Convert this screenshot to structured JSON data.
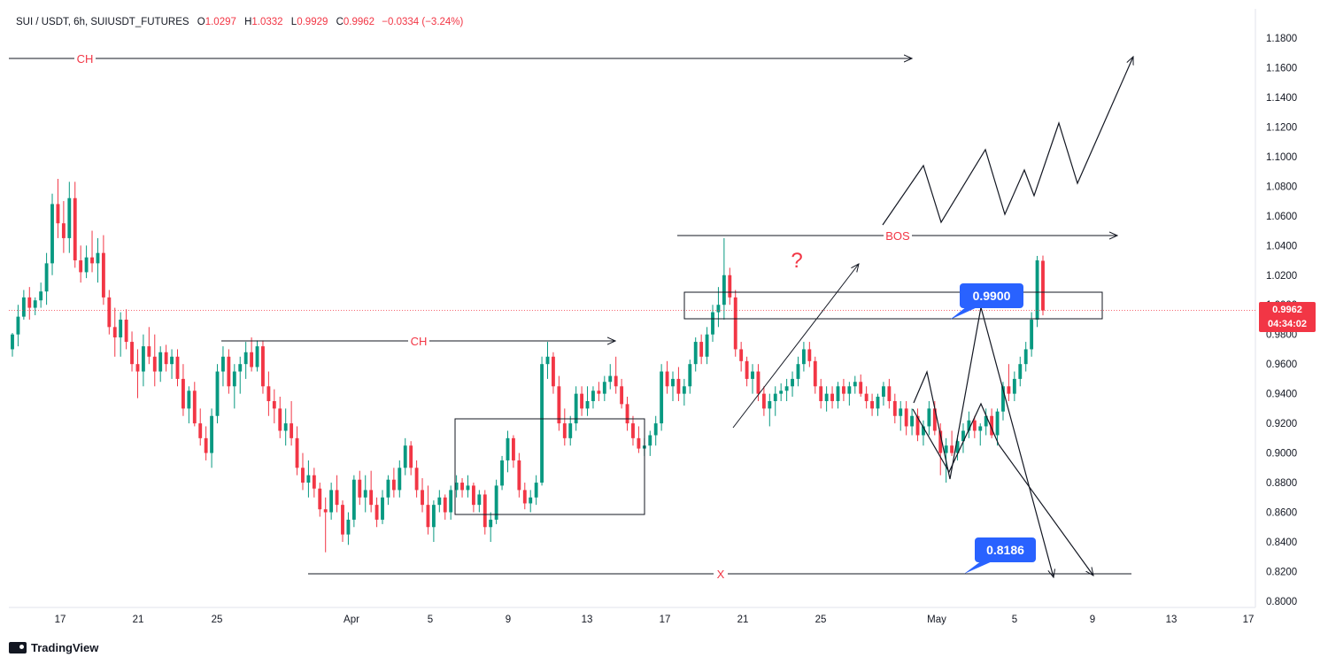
{
  "header": {
    "symbol": "SUI / USDT, 6h, SUIUSDT_FUTURES",
    "open_label": "O",
    "open": "1.0297",
    "high_label": "H",
    "high": "1.0332",
    "low_label": "L",
    "low": "0.9929",
    "close_label": "C",
    "close": "0.9962",
    "change": "−0.0334 (−3.24%)"
  },
  "price_tag": {
    "price": "0.9962",
    "countdown": "04:34:02"
  },
  "brand": {
    "name": "TradingView"
  },
  "colors": {
    "up": "#089981",
    "down": "#f23645",
    "label_blue": "#2962ff",
    "annotation_red": "#f23645"
  },
  "chart_data": {
    "type": "candlestick",
    "y_axis": {
      "range": [
        0.79,
        1.19
      ],
      "ticks": [
        "1.1800",
        "1.1600",
        "1.1400",
        "1.1200",
        "1.1000",
        "1.0800",
        "1.0600",
        "1.0400",
        "1.0200",
        "1.0000",
        "0.9800",
        "0.9600",
        "0.9400",
        "0.9200",
        "0.9000",
        "0.8800",
        "0.8600",
        "0.8400",
        "0.8200",
        "0.8000"
      ]
    },
    "x_axis": {
      "ticks": [
        "17",
        "21",
        "25",
        "Apr",
        "5",
        "9",
        "13",
        "17",
        "21",
        "25",
        "May",
        "5",
        "9",
        "13",
        "17"
      ]
    },
    "grid": false,
    "annotations": {
      "ch_top": "CH",
      "ch_mid": "CH",
      "bos": "BOS",
      "x_line": "X",
      "question": "?",
      "level_upper": "0.9900",
      "level_lower": "0.8186"
    },
    "candles_approx": [
      [
        0.97,
        0.981,
        0.965,
        0.98
      ],
      [
        0.98,
        1.0,
        0.972,
        0.992
      ],
      [
        0.992,
        1.01,
        0.99,
        1.005
      ],
      [
        1.005,
        1.012,
        0.99,
        0.998
      ],
      [
        0.998,
        1.005,
        0.993,
        1.003
      ],
      [
        1.003,
        1.015,
        0.998,
        1.009
      ],
      [
        1.009,
        1.035,
        1.0,
        1.028
      ],
      [
        1.028,
        1.075,
        1.02,
        1.068
      ],
      [
        1.068,
        1.085,
        1.045,
        1.055
      ],
      [
        1.055,
        1.07,
        1.035,
        1.045
      ],
      [
        1.045,
        1.083,
        1.035,
        1.072
      ],
      [
        1.072,
        1.083,
        1.025,
        1.03
      ],
      [
        1.03,
        1.04,
        1.015,
        1.022
      ],
      [
        1.022,
        1.04,
        1.018,
        1.032
      ],
      [
        1.032,
        1.05,
        1.022,
        1.028
      ],
      [
        1.028,
        1.045,
        1.015,
        1.035
      ],
      [
        1.035,
        1.047,
        1.0,
        1.005
      ],
      [
        1.005,
        1.01,
        0.98,
        0.985
      ],
      [
        0.985,
        0.998,
        0.965,
        0.978
      ],
      [
        0.978,
        0.995,
        0.965,
        0.99
      ],
      [
        0.99,
        0.997,
        0.97,
        0.975
      ],
      [
        0.975,
        0.982,
        0.955,
        0.96
      ],
      [
        0.96,
        0.97,
        0.937,
        0.955
      ],
      [
        0.955,
        0.98,
        0.945,
        0.972
      ],
      [
        0.972,
        0.985,
        0.96,
        0.965
      ],
      [
        0.965,
        0.98,
        0.945,
        0.955
      ],
      [
        0.955,
        0.972,
        0.948,
        0.968
      ],
      [
        0.968,
        0.973,
        0.955,
        0.96
      ],
      [
        0.96,
        0.97,
        0.95,
        0.965
      ],
      [
        0.965,
        0.97,
        0.945,
        0.95
      ],
      [
        0.95,
        0.96,
        0.925,
        0.93
      ],
      [
        0.93,
        0.945,
        0.92,
        0.942
      ],
      [
        0.942,
        0.948,
        0.918,
        0.92
      ],
      [
        0.92,
        0.93,
        0.905,
        0.91
      ],
      [
        0.91,
        0.918,
        0.895,
        0.9
      ],
      [
        0.9,
        0.93,
        0.89,
        0.925
      ],
      [
        0.925,
        0.96,
        0.92,
        0.955
      ],
      [
        0.955,
        0.972,
        0.945,
        0.965
      ],
      [
        0.965,
        0.97,
        0.94,
        0.945
      ],
      [
        0.945,
        0.96,
        0.93,
        0.955
      ],
      [
        0.955,
        0.965,
        0.94,
        0.96
      ],
      [
        0.96,
        0.975,
        0.95,
        0.968
      ],
      [
        0.968,
        0.978,
        0.955,
        0.958
      ],
      [
        0.958,
        0.976,
        0.955,
        0.972
      ],
      [
        0.972,
        0.976,
        0.94,
        0.945
      ],
      [
        0.945,
        0.955,
        0.925,
        0.935
      ],
      [
        0.935,
        0.943,
        0.92,
        0.93
      ],
      [
        0.93,
        0.938,
        0.91,
        0.915
      ],
      [
        0.915,
        0.93,
        0.905,
        0.92
      ],
      [
        0.92,
        0.935,
        0.905,
        0.91
      ],
      [
        0.91,
        0.918,
        0.885,
        0.89
      ],
      [
        0.89,
        0.9,
        0.875,
        0.88
      ],
      [
        0.88,
        0.895,
        0.87,
        0.885
      ],
      [
        0.885,
        0.89,
        0.87,
        0.876
      ],
      [
        0.876,
        0.88,
        0.857,
        0.862
      ],
      [
        0.862,
        0.87,
        0.833,
        0.86
      ],
      [
        0.86,
        0.88,
        0.855,
        0.875
      ],
      [
        0.875,
        0.885,
        0.86,
        0.865
      ],
      [
        0.865,
        0.868,
        0.84,
        0.845
      ],
      [
        0.845,
        0.86,
        0.838,
        0.855
      ],
      [
        0.855,
        0.885,
        0.85,
        0.882
      ],
      [
        0.882,
        0.888,
        0.865,
        0.87
      ],
      [
        0.87,
        0.885,
        0.86,
        0.875
      ],
      [
        0.875,
        0.888,
        0.86,
        0.865
      ],
      [
        0.865,
        0.87,
        0.85,
        0.855
      ],
      [
        0.855,
        0.875,
        0.852,
        0.87
      ],
      [
        0.87,
        0.885,
        0.865,
        0.882
      ],
      [
        0.882,
        0.89,
        0.87,
        0.875
      ],
      [
        0.875,
        0.895,
        0.87,
        0.89
      ],
      [
        0.89,
        0.91,
        0.885,
        0.905
      ],
      [
        0.905,
        0.908,
        0.885,
        0.89
      ],
      [
        0.89,
        0.895,
        0.87,
        0.875
      ],
      [
        0.875,
        0.883,
        0.86,
        0.865
      ],
      [
        0.865,
        0.878,
        0.845,
        0.85
      ],
      [
        0.85,
        0.868,
        0.84,
        0.865
      ],
      [
        0.865,
        0.875,
        0.86,
        0.87
      ],
      [
        0.87,
        0.872,
        0.855,
        0.86
      ],
      [
        0.86,
        0.878,
        0.855,
        0.875
      ],
      [
        0.875,
        0.885,
        0.87,
        0.88
      ],
      [
        0.88,
        0.883,
        0.87,
        0.875
      ],
      [
        0.875,
        0.885,
        0.87,
        0.878
      ],
      [
        0.878,
        0.88,
        0.86,
        0.865
      ],
      [
        0.865,
        0.875,
        0.86,
        0.872
      ],
      [
        0.872,
        0.875,
        0.845,
        0.85
      ],
      [
        0.85,
        0.86,
        0.84,
        0.855
      ],
      [
        0.855,
        0.882,
        0.852,
        0.878
      ],
      [
        0.878,
        0.898,
        0.875,
        0.895
      ],
      [
        0.895,
        0.915,
        0.887,
        0.91
      ],
      [
        0.91,
        0.912,
        0.89,
        0.895
      ],
      [
        0.895,
        0.9,
        0.87,
        0.875
      ],
      [
        0.875,
        0.88,
        0.862,
        0.866
      ],
      [
        0.866,
        0.875,
        0.86,
        0.87
      ],
      [
        0.87,
        0.885,
        0.865,
        0.88
      ],
      [
        0.88,
        0.965,
        0.878,
        0.96
      ],
      [
        0.96,
        0.975,
        0.95,
        0.965
      ],
      [
        0.965,
        0.968,
        0.94,
        0.945
      ],
      [
        0.945,
        0.952,
        0.915,
        0.92
      ],
      [
        0.92,
        0.93,
        0.905,
        0.91
      ],
      [
        0.91,
        0.925,
        0.905,
        0.92
      ],
      [
        0.92,
        0.945,
        0.915,
        0.94
      ],
      [
        0.94,
        0.945,
        0.925,
        0.93
      ],
      [
        0.93,
        0.945,
        0.925,
        0.935
      ],
      [
        0.935,
        0.945,
        0.93,
        0.942
      ],
      [
        0.942,
        0.948,
        0.935,
        0.94
      ],
      [
        0.94,
        0.952,
        0.935,
        0.948
      ],
      [
        0.948,
        0.96,
        0.943,
        0.952
      ],
      [
        0.952,
        0.965,
        0.94,
        0.945
      ],
      [
        0.945,
        0.95,
        0.93,
        0.933
      ],
      [
        0.933,
        0.938,
        0.915,
        0.92
      ],
      [
        0.92,
        0.925,
        0.905,
        0.91
      ],
      [
        0.91,
        0.918,
        0.9,
        0.903
      ],
      [
        0.903,
        0.91,
        0.898,
        0.905
      ],
      [
        0.905,
        0.915,
        0.898,
        0.912
      ],
      [
        0.912,
        0.925,
        0.905,
        0.92
      ],
      [
        0.92,
        0.96,
        0.915,
        0.955
      ],
      [
        0.955,
        0.962,
        0.94,
        0.945
      ],
      [
        0.945,
        0.955,
        0.935,
        0.95
      ],
      [
        0.95,
        0.958,
        0.935,
        0.94
      ],
      [
        0.94,
        0.95,
        0.932,
        0.945
      ],
      [
        0.945,
        0.963,
        0.94,
        0.96
      ],
      [
        0.96,
        0.978,
        0.955,
        0.975
      ],
      [
        0.975,
        0.98,
        0.96,
        0.965
      ],
      [
        0.965,
        0.985,
        0.96,
        0.98
      ],
      [
        0.98,
        1.0,
        0.975,
        0.995
      ],
      [
        0.995,
        1.012,
        0.985,
        1.0
      ],
      [
        1.0,
        1.045,
        0.99,
        1.02
      ],
      [
        1.02,
        1.025,
        1.0,
        1.005
      ],
      [
        1.005,
        1.01,
        0.965,
        0.97
      ],
      [
        0.97,
        0.975,
        0.955,
        0.962
      ],
      [
        0.962,
        0.965,
        0.945,
        0.95
      ],
      [
        0.95,
        0.96,
        0.94,
        0.955
      ],
      [
        0.955,
        0.96,
        0.935,
        0.94
      ],
      [
        0.94,
        0.945,
        0.925,
        0.93
      ],
      [
        0.93,
        0.94,
        0.918,
        0.935
      ],
      [
        0.935,
        0.945,
        0.925,
        0.94
      ],
      [
        0.94,
        0.947,
        0.935,
        0.942
      ],
      [
        0.942,
        0.95,
        0.935,
        0.945
      ],
      [
        0.945,
        0.955,
        0.938,
        0.95
      ],
      [
        0.95,
        0.965,
        0.945,
        0.96
      ],
      [
        0.96,
        0.975,
        0.955,
        0.97
      ],
      [
        0.97,
        0.975,
        0.958,
        0.962
      ],
      [
        0.962,
        0.965,
        0.94,
        0.945
      ],
      [
        0.945,
        0.95,
        0.93,
        0.935
      ],
      [
        0.935,
        0.945,
        0.928,
        0.94
      ],
      [
        0.94,
        0.945,
        0.93,
        0.935
      ],
      [
        0.935,
        0.948,
        0.93,
        0.945
      ],
      [
        0.945,
        0.95,
        0.935,
        0.94
      ],
      [
        0.94,
        0.948,
        0.932,
        0.945
      ],
      [
        0.945,
        0.952,
        0.94,
        0.948
      ],
      [
        0.948,
        0.953,
        0.938,
        0.94
      ],
      [
        0.94,
        0.945,
        0.93,
        0.935
      ],
      [
        0.935,
        0.94,
        0.925,
        0.93
      ],
      [
        0.93,
        0.94,
        0.925,
        0.938
      ],
      [
        0.938,
        0.948,
        0.932,
        0.945
      ],
      [
        0.945,
        0.95,
        0.93,
        0.935
      ],
      [
        0.935,
        0.94,
        0.92,
        0.925
      ],
      [
        0.925,
        0.935,
        0.915,
        0.93
      ],
      [
        0.93,
        0.935,
        0.912,
        0.918
      ],
      [
        0.918,
        0.93,
        0.912,
        0.925
      ],
      [
        0.925,
        0.93,
        0.908,
        0.912
      ],
      [
        0.912,
        0.922,
        0.905,
        0.918
      ],
      [
        0.918,
        0.935,
        0.912,
        0.93
      ],
      [
        0.93,
        0.935,
        0.912,
        0.915
      ],
      [
        0.915,
        0.92,
        0.885,
        0.9
      ],
      [
        0.9,
        0.91,
        0.88,
        0.905
      ],
      [
        0.905,
        0.915,
        0.898,
        0.9
      ],
      [
        0.9,
        0.912,
        0.895,
        0.908
      ],
      [
        0.908,
        0.92,
        0.9,
        0.915
      ],
      [
        0.915,
        0.928,
        0.91,
        0.922
      ],
      [
        0.922,
        0.925,
        0.91,
        0.915
      ],
      [
        0.915,
        0.92,
        0.905,
        0.918
      ],
      [
        0.918,
        0.93,
        0.912,
        0.925
      ],
      [
        0.925,
        0.93,
        0.91,
        0.912
      ],
      [
        0.912,
        0.93,
        0.905,
        0.928
      ],
      [
        0.928,
        0.948,
        0.922,
        0.945
      ],
      [
        0.945,
        0.96,
        0.935,
        0.94
      ],
      [
        0.94,
        0.955,
        0.935,
        0.95
      ],
      [
        0.95,
        0.965,
        0.945,
        0.96
      ],
      [
        0.96,
        0.975,
        0.955,
        0.97
      ],
      [
        0.97,
        0.995,
        0.965,
        0.99
      ],
      [
        0.99,
        1.033,
        0.985,
        1.03
      ],
      [
        1.0297,
        1.0332,
        0.9929,
        0.9962
      ]
    ]
  }
}
